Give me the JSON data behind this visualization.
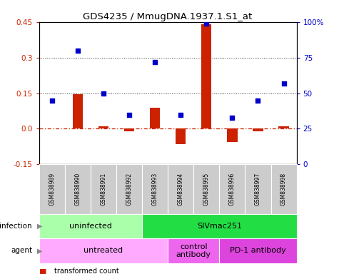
{
  "title": "GDS4235 / MmugDNA.1937.1.S1_at",
  "samples": [
    "GSM838989",
    "GSM838990",
    "GSM838991",
    "GSM838992",
    "GSM838993",
    "GSM838994",
    "GSM838995",
    "GSM838996",
    "GSM838997",
    "GSM838998"
  ],
  "transformed_count": [
    0.0,
    0.145,
    0.01,
    -0.01,
    0.09,
    -0.065,
    0.44,
    -0.055,
    -0.01,
    0.01
  ],
  "percentile_rank": [
    45,
    80,
    50,
    35,
    72,
    35,
    99,
    33,
    45,
    57
  ],
  "ylim_left": [
    -0.15,
    0.45
  ],
  "ylim_right": [
    0,
    100
  ],
  "yticks_left": [
    -0.15,
    0.0,
    0.15,
    0.3,
    0.45
  ],
  "yticks_right": [
    0,
    25,
    50,
    75,
    100
  ],
  "hlines": [
    0.15,
    0.3
  ],
  "infection_groups": [
    {
      "label": "uninfected",
      "start": 0,
      "end": 4,
      "color": "#AAFFAA"
    },
    {
      "label": "SIVmac251",
      "start": 4,
      "end": 10,
      "color": "#22DD44"
    }
  ],
  "agent_groups": [
    {
      "label": "untreated",
      "start": 0,
      "end": 5,
      "color": "#FFAAFF"
    },
    {
      "label": "control\nantibody",
      "start": 5,
      "end": 7,
      "color": "#EE66EE"
    },
    {
      "label": "PD-1 antibody",
      "start": 7,
      "end": 10,
      "color": "#DD44DD"
    }
  ],
  "bar_color": "#CC2200",
  "dot_color": "#0000CC",
  "zero_line_color": "#CC2200",
  "hline_color": "#333333",
  "sample_box_color": "#CCCCCC",
  "infection_label": "infection",
  "agent_label": "agent"
}
